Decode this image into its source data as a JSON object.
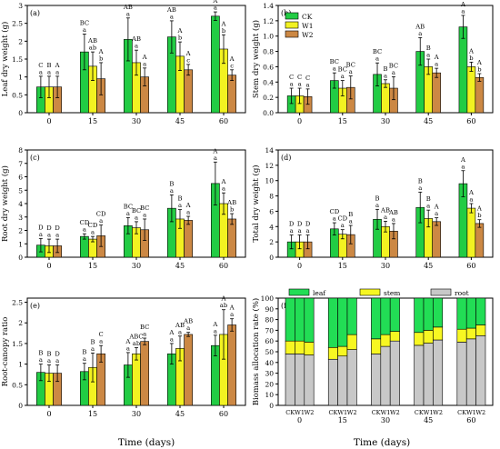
{
  "figure": {
    "xlabel": "Time (days)",
    "colors": {
      "CK": "#22cc44",
      "W1": "#f2f221",
      "W2": "#cc8844",
      "leaf": "#22dd55",
      "stem": "#f7f722",
      "root": "#c8c8c8"
    }
  },
  "chart_data": [
    {
      "type": "bar",
      "panel": "(a)",
      "ylabel": "Leaf dry weight (g)",
      "categories": [
        "0",
        "15",
        "30",
        "45",
        "60"
      ],
      "ylim": [
        0,
        3
      ],
      "yticks": [
        0,
        0.5,
        1,
        1.5,
        2,
        2.5,
        3
      ],
      "series": [
        {
          "key": "CK",
          "values": [
            0.72,
            1.7,
            2.05,
            2.12,
            2.7
          ],
          "errors": [
            0.3,
            0.5,
            0.6,
            0.45,
            0.12
          ],
          "labels_upper": [
            "C",
            "BC",
            "AB",
            "AB",
            "A"
          ],
          "labels_lower": [
            "a",
            "a",
            "a",
            "a",
            "a"
          ]
        },
        {
          "key": "W1",
          "values": [
            0.72,
            1.3,
            1.4,
            1.58,
            1.78
          ],
          "errors": [
            0.3,
            0.4,
            0.35,
            0.4,
            0.4
          ],
          "labels_upper": [
            "B",
            "AB",
            "AB",
            "A",
            "A"
          ],
          "labels_lower": [
            "a",
            "ab",
            "a",
            "b",
            "b"
          ]
        },
        {
          "key": "W2",
          "values": [
            0.72,
            0.95,
            1.0,
            1.2,
            1.05
          ],
          "errors": [
            0.3,
            0.45,
            0.25,
            0.15,
            0.15
          ],
          "labels_upper": [
            "A",
            "A",
            "A",
            "A",
            "A"
          ],
          "labels_lower": [
            "a",
            "b",
            "a",
            "c",
            "c"
          ]
        }
      ]
    },
    {
      "type": "bar",
      "panel": "(b)",
      "ylabel": "Stem dry weight (g)",
      "categories": [
        "0",
        "15",
        "30",
        "45",
        "60"
      ],
      "ylim": [
        0,
        1.4
      ],
      "yticks": [
        0,
        0.2,
        0.4,
        0.6,
        0.8,
        1.0,
        1.2,
        1.4
      ],
      "legend": [
        "CK",
        "W1",
        "W2"
      ],
      "series": [
        {
          "key": "CK",
          "values": [
            0.22,
            0.42,
            0.5,
            0.8,
            1.12
          ],
          "errors": [
            0.1,
            0.1,
            0.15,
            0.18,
            0.15
          ],
          "labels_upper": [
            "C",
            "BC",
            "BC",
            "AB",
            "A"
          ],
          "labels_lower": [
            "a",
            "a",
            "a",
            "a",
            "a"
          ]
        },
        {
          "key": "W1",
          "values": [
            0.22,
            0.32,
            0.38,
            0.6,
            0.6
          ],
          "errors": [
            0.1,
            0.1,
            0.05,
            0.1,
            0.06
          ],
          "labels_upper": [
            "C",
            "BC",
            "B",
            "B",
            "A"
          ],
          "labels_lower": [
            "a",
            "a",
            "a",
            "a",
            "b"
          ]
        },
        {
          "key": "W2",
          "values": [
            0.21,
            0.33,
            0.32,
            0.52,
            0.46
          ],
          "errors": [
            0.1,
            0.15,
            0.15,
            0.06,
            0.05
          ],
          "labels_upper": [
            "C",
            "BC",
            "BC",
            "A",
            "A"
          ],
          "labels_lower": [
            "a",
            "a",
            "a",
            "a",
            "b"
          ]
        }
      ]
    },
    {
      "type": "bar",
      "panel": "(c)",
      "ylabel": "Root dry weight (g)",
      "categories": [
        "0",
        "15",
        "30",
        "45",
        "60"
      ],
      "ylim": [
        0,
        8
      ],
      "yticks": [
        0,
        1,
        2,
        3,
        4,
        5,
        6,
        7,
        8
      ],
      "series": [
        {
          "key": "CK",
          "values": [
            0.9,
            1.55,
            2.35,
            3.65,
            5.5
          ],
          "errors": [
            0.5,
            0.2,
            0.6,
            1.0,
            1.6
          ],
          "labels_upper": [
            "D",
            "CD",
            "BC",
            "B",
            "A"
          ],
          "labels_lower": [
            "a",
            "a",
            "a",
            "a",
            "a"
          ]
        },
        {
          "key": "W1",
          "values": [
            0.85,
            1.35,
            2.2,
            2.85,
            4.0
          ],
          "errors": [
            0.5,
            0.2,
            0.45,
            0.7,
            0.8
          ],
          "labels_upper": [
            "D",
            "CD",
            "BC",
            "B",
            "A"
          ],
          "labels_lower": [
            "a",
            "a",
            "a",
            "a",
            "a"
          ]
        },
        {
          "key": "W2",
          "values": [
            0.85,
            1.6,
            2.05,
            2.75,
            2.85
          ],
          "errors": [
            0.5,
            0.8,
            0.8,
            0.3,
            0.4
          ],
          "labels_upper": [
            "D",
            "CD",
            "BC",
            "A",
            "AB"
          ],
          "labels_lower": [
            "a",
            "a",
            "a",
            "a",
            "b"
          ]
        }
      ]
    },
    {
      "type": "bar",
      "panel": "(d)",
      "ylabel": "Total dry weight (g)",
      "categories": [
        "0",
        "15",
        "30",
        "45",
        "60"
      ],
      "ylim": [
        0,
        14
      ],
      "yticks": [
        0,
        2,
        4,
        6,
        8,
        10,
        12,
        14
      ],
      "series": [
        {
          "key": "CK",
          "values": [
            2.0,
            3.7,
            4.95,
            6.5,
            9.6
          ],
          "errors": [
            0.9,
            0.8,
            1.3,
            2.0,
            1.7
          ],
          "labels_upper": [
            "D",
            "CD",
            "B",
            "B",
            "A"
          ],
          "labels_lower": [
            "a",
            "a",
            "a",
            "a",
            "a"
          ]
        },
        {
          "key": "W1",
          "values": [
            2.0,
            3.0,
            4.0,
            5.05,
            6.4
          ],
          "errors": [
            0.9,
            0.6,
            0.7,
            1.1,
            0.6
          ],
          "labels_upper": [
            "D",
            "CD",
            "AB",
            "B",
            "A"
          ],
          "labels_lower": [
            "a",
            "a",
            "a",
            "a",
            "a"
          ]
        },
        {
          "key": "W2",
          "values": [
            2.0,
            2.95,
            3.4,
            4.65,
            4.4
          ],
          "errors": [
            0.9,
            1.2,
            1.0,
            0.5,
            0.5
          ],
          "labels_upper": [
            "D",
            "B",
            "AB",
            "A",
            "A"
          ],
          "labels_lower": [
            "a",
            "a",
            "a",
            "a",
            "b"
          ]
        }
      ]
    },
    {
      "type": "bar",
      "panel": "(e)",
      "ylabel": "Root-canopy ratio",
      "categories": [
        "0",
        "15",
        "30",
        "45",
        "60"
      ],
      "ylim": [
        0,
        2.6
      ],
      "yticks": [
        0,
        0.5,
        1,
        1.5,
        2,
        2.5
      ],
      "series": [
        {
          "key": "CK",
          "values": [
            0.8,
            0.82,
            0.98,
            1.25,
            1.45
          ],
          "errors": [
            0.2,
            0.2,
            0.3,
            0.25,
            0.25
          ],
          "labels_upper": [
            "B",
            "B",
            "A",
            "A",
            "A"
          ],
          "labels_lower": [
            "a",
            "a",
            "a",
            "a",
            "a"
          ]
        },
        {
          "key": "W1",
          "values": [
            0.78,
            0.92,
            1.25,
            1.38,
            1.72
          ],
          "errors": [
            0.2,
            0.35,
            0.15,
            0.3,
            0.6
          ],
          "labels_upper": [
            "B",
            "B",
            "ABC",
            "AB",
            "A"
          ],
          "labels_lower": [
            "a",
            "a",
            "ab",
            "a",
            "ab"
          ]
        },
        {
          "key": "W2",
          "values": [
            0.78,
            1.25,
            1.55,
            1.72,
            1.95
          ],
          "errors": [
            0.2,
            0.2,
            0.08,
            0.05,
            0.15
          ],
          "labels_upper": [
            "D",
            "C",
            "BC",
            "AB",
            "A"
          ],
          "labels_lower": [
            "a",
            "a",
            "a",
            "a",
            "a"
          ]
        }
      ]
    },
    {
      "type": "stacked-bar",
      "panel": "(f)",
      "ylabel": "Biomass allocation rate (%)",
      "categories": [
        "0",
        "15",
        "30",
        "45",
        "60"
      ],
      "treatments": [
        "CK",
        "W1",
        "W2"
      ],
      "ylim": [
        0,
        100
      ],
      "yticks": [
        0,
        10,
        20,
        30,
        40,
        50,
        60,
        70,
        80,
        90,
        100
      ],
      "legend": [
        "leaf",
        "stem",
        "root"
      ],
      "root": [
        [
          48,
          48,
          47
        ],
        [
          43,
          46,
          52
        ],
        [
          48,
          55,
          60
        ],
        [
          56,
          58,
          61
        ],
        [
          59,
          62,
          65
        ]
      ],
      "stem": [
        [
          12,
          12,
          12
        ],
        [
          11,
          9,
          14
        ],
        [
          14,
          11,
          9
        ],
        [
          12,
          12,
          12
        ],
        [
          12,
          10,
          10
        ]
      ],
      "leaf": [
        [
          40,
          40,
          41
        ],
        [
          46,
          45,
          34
        ],
        [
          38,
          34,
          31
        ],
        [
          32,
          30,
          27
        ],
        [
          29,
          28,
          25
        ]
      ]
    }
  ]
}
